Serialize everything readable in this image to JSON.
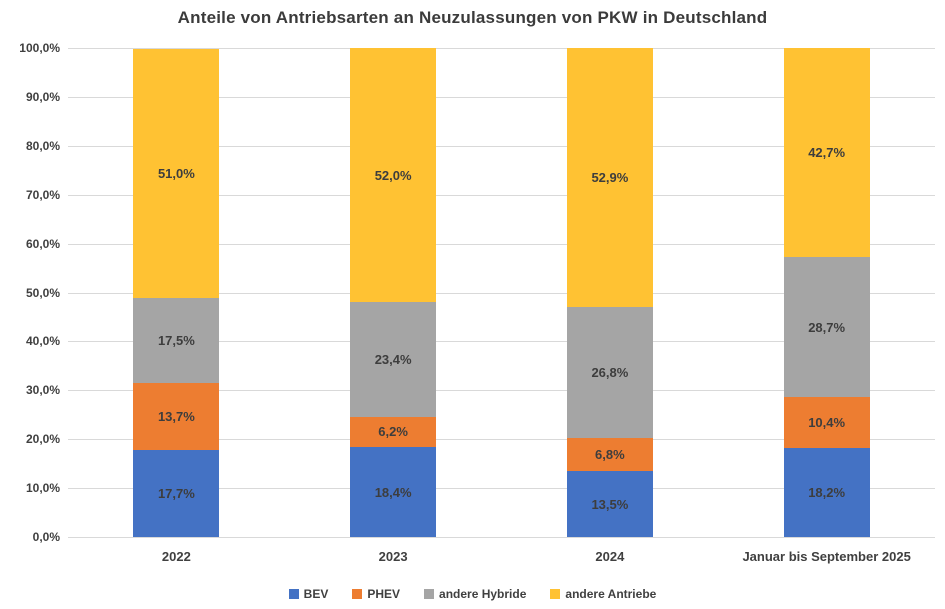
{
  "chart_data": {
    "type": "bar",
    "stacked": true,
    "percent_stacked": true,
    "title": "Anteile von Antriebsarten an Neuzulassungen von PKW in Deutschland",
    "categories": [
      "2022",
      "2023",
      "2024",
      "Januar bis September 2025"
    ],
    "series": [
      {
        "name": "BEV",
        "color": "#4472C4",
        "values": [
          17.7,
          18.4,
          13.5,
          18.2
        ],
        "labels": [
          "17,7%",
          "18,4%",
          "13,5%",
          "18,2%"
        ]
      },
      {
        "name": "PHEV",
        "color": "#ED7D31",
        "values": [
          13.7,
          6.2,
          6.8,
          10.4
        ],
        "labels": [
          "13,7%",
          "6,2%",
          "6,8%",
          "10,4%"
        ]
      },
      {
        "name": "andere Hybride",
        "color": "#A5A5A5",
        "values": [
          17.5,
          23.4,
          26.8,
          28.7
        ],
        "labels": [
          "17,5%",
          "23,4%",
          "26,8%",
          "28,7%"
        ]
      },
      {
        "name": "andere Antriebe",
        "color": "#FFC233",
        "values": [
          51.0,
          52.0,
          52.9,
          42.7
        ],
        "labels": [
          "51,0%",
          "52,0%",
          "52,9%",
          "42,7%"
        ]
      }
    ],
    "y_axis": {
      "min": 0,
      "max": 100,
      "step": 10,
      "tick_labels": [
        "0,0%",
        "10,0%",
        "20,0%",
        "30,0%",
        "40,0%",
        "50,0%",
        "60,0%",
        "70,0%",
        "80,0%",
        "90,0%",
        "100,0%"
      ]
    },
    "xlabel": "",
    "ylabel": "",
    "grid": true,
    "gridline_color": "#D9D9D9",
    "text_color": "#404040",
    "legend": {
      "position": "bottom",
      "items": [
        "BEV",
        "PHEV",
        "andere Hybride",
        "andere Antriebe"
      ]
    }
  }
}
